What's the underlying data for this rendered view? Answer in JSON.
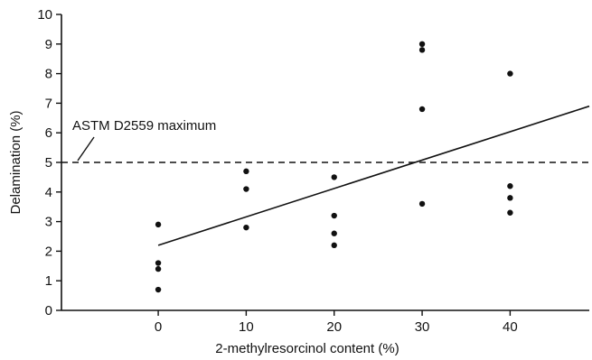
{
  "chart_data": {
    "type": "scatter",
    "title": "",
    "xlabel": "2-methylresorcinol content (%)",
    "ylabel": "Delamination (%)",
    "xlim": [
      -11,
      49
    ],
    "ylim": [
      0,
      10
    ],
    "xticks": [
      0,
      10,
      20,
      30,
      40
    ],
    "yticks": [
      0,
      1,
      2,
      3,
      4,
      5,
      6,
      7,
      8,
      9,
      10
    ],
    "grid": false,
    "series": [
      {
        "points": [
          {
            "x": 0,
            "y": 2.9
          },
          {
            "x": 0,
            "y": 1.6
          },
          {
            "x": 0,
            "y": 1.4
          },
          {
            "x": 0,
            "y": 0.7
          },
          {
            "x": 10,
            "y": 4.7
          },
          {
            "x": 10,
            "y": 4.1
          },
          {
            "x": 10,
            "y": 2.8
          },
          {
            "x": 20,
            "y": 4.5
          },
          {
            "x": 20,
            "y": 3.2
          },
          {
            "x": 20,
            "y": 2.6
          },
          {
            "x": 20,
            "y": 2.2
          },
          {
            "x": 30,
            "y": 9.0
          },
          {
            "x": 30,
            "y": 8.8
          },
          {
            "x": 30,
            "y": 6.8
          },
          {
            "x": 30,
            "y": 3.6
          },
          {
            "x": 40,
            "y": 8.0
          },
          {
            "x": 40,
            "y": 4.2
          },
          {
            "x": 40,
            "y": 3.8
          },
          {
            "x": 40,
            "y": 3.3
          }
        ]
      }
    ],
    "trendline": {
      "x": [
        0,
        49
      ],
      "y": [
        2.2,
        6.9
      ]
    },
    "reference_line": {
      "y": 5,
      "label": "ASTM D2559 maximum"
    },
    "colors": {
      "ink": "#111111",
      "background": "#ffffff"
    }
  }
}
